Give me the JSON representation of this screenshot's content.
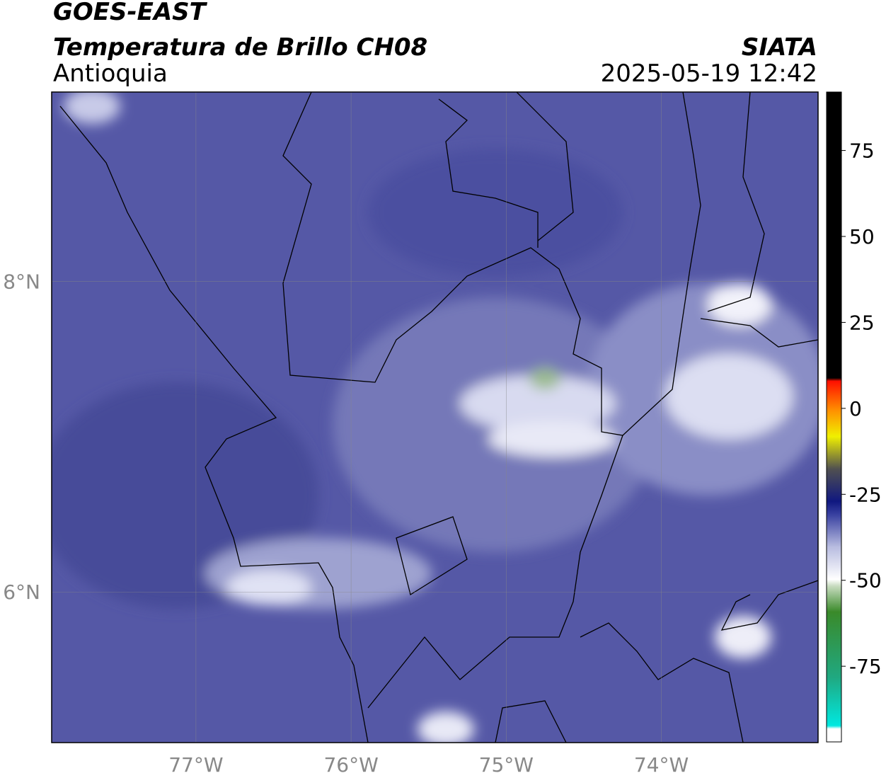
{
  "header": {
    "title": "GOES-EAST",
    "subtitle": "Temperatura de Brillo CH08",
    "region": "Antioquia",
    "source": "SIATA",
    "timestamp": "2025-05-19 12:42"
  },
  "map": {
    "xlim": [
      -77.93,
      -72.99
    ],
    "ylim": [
      5.03,
      9.22
    ],
    "xticks": [
      {
        "value": -77,
        "label": "77°W"
      },
      {
        "value": -76,
        "label": "76°W"
      },
      {
        "value": -75,
        "label": "75°W"
      },
      {
        "value": -74,
        "label": "74°W"
      }
    ],
    "yticks": [
      {
        "value": 6,
        "label": "6°N"
      },
      {
        "value": 8,
        "label": "8°N"
      }
    ],
    "grid": true
  },
  "colorbar": {
    "lim": [
      -97,
      92
    ],
    "ticks": [
      -75,
      -50,
      -25,
      0,
      25,
      50,
      75
    ]
  }
}
